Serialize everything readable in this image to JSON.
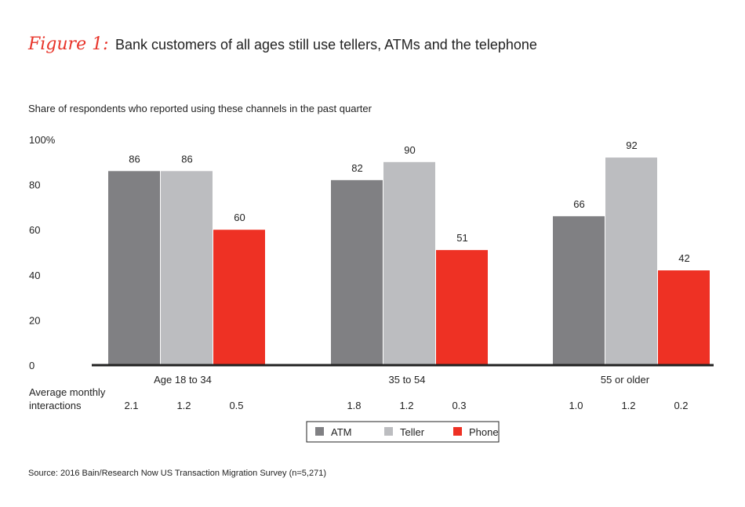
{
  "header": {
    "figure_label": "Figure 1:",
    "title": "Bank customers of all ages still use tellers, ATMs and the telephone"
  },
  "subtitle": "Share of respondents who reported using these channels in the past quarter",
  "source": "Source: 2016 Bain/Research Now US Transaction Migration Survey (n=5,271)",
  "chart_data": {
    "type": "bar",
    "categories": [
      "Age 18 to 34",
      "35 to 54",
      "55 or older"
    ],
    "series": [
      {
        "name": "ATM",
        "color": "#808083",
        "values": [
          86,
          82,
          66
        ],
        "avg_monthly_interactions": [
          "2.1",
          "1.8",
          "1.0"
        ]
      },
      {
        "name": "Teller",
        "color": "#bcbdc0",
        "values": [
          86,
          90,
          92
        ],
        "avg_monthly_interactions": [
          "1.2",
          "1.2",
          "1.2"
        ]
      },
      {
        "name": "Phone",
        "color": "#ee3124",
        "values": [
          60,
          51,
          42
        ],
        "avg_monthly_interactions": [
          "0.5",
          "0.3",
          "0.2"
        ]
      }
    ],
    "ylim": [
      0,
      100
    ],
    "yticks": [
      "100%",
      "80",
      "60",
      "40",
      "20",
      "0"
    ],
    "ytick_values": [
      100,
      80,
      60,
      40,
      20,
      0
    ],
    "interactions_label": [
      "Average monthly",
      "interactions"
    ],
    "grid": false,
    "legend_position": "bottom-center"
  }
}
